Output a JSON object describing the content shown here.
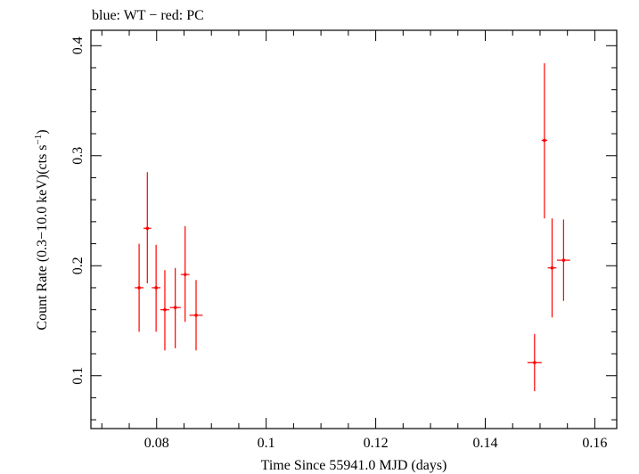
{
  "chart_data": {
    "type": "scatter",
    "title": "blue: WT − red: PC",
    "xlabel": "Time Since 55941.0 MJD (days)",
    "ylabel_main": "Count Rate (0.3−10.0 keV)(cts s",
    "ylabel_sup": "−1",
    "ylabel_close": ")",
    "xlim": [
      0.068,
      0.164
    ],
    "ylim": [
      0.052,
      0.414
    ],
    "xticks": [
      0.08,
      0.1,
      0.12,
      0.14,
      0.16
    ],
    "xtick_labels": [
      "0.08",
      "0.1",
      "0.12",
      "0.14",
      "0.16"
    ],
    "yticks": [
      0.1,
      0.2,
      0.3,
      0.4
    ],
    "ytick_labels": [
      "0.1",
      "0.2",
      "0.3",
      "0.4"
    ],
    "series": [
      {
        "name": "PC",
        "color": "#ff0000",
        "points": [
          {
            "x": 0.0768,
            "xerr": 0.0008,
            "y": 0.18,
            "ylo": 0.14,
            "yhi": 0.22
          },
          {
            "x": 0.0783,
            "xerr": 0.0007,
            "y": 0.234,
            "ylo": 0.184,
            "yhi": 0.285
          },
          {
            "x": 0.0799,
            "xerr": 0.0008,
            "y": 0.18,
            "ylo": 0.14,
            "yhi": 0.219
          },
          {
            "x": 0.0815,
            "xerr": 0.0008,
            "y": 0.16,
            "ylo": 0.123,
            "yhi": 0.196
          },
          {
            "x": 0.0834,
            "xerr": 0.001,
            "y": 0.162,
            "ylo": 0.125,
            "yhi": 0.198
          },
          {
            "x": 0.0852,
            "xerr": 0.0008,
            "y": 0.192,
            "ylo": 0.149,
            "yhi": 0.236
          },
          {
            "x": 0.0872,
            "xerr": 0.0012,
            "y": 0.155,
            "ylo": 0.123,
            "yhi": 0.187
          },
          {
            "x": 0.149,
            "xerr": 0.0013,
            "y": 0.112,
            "ylo": 0.086,
            "yhi": 0.138
          },
          {
            "x": 0.1508,
            "xerr": 0.0005,
            "y": 0.314,
            "ylo": 0.243,
            "yhi": 0.384
          },
          {
            "x": 0.1522,
            "xerr": 0.0008,
            "y": 0.198,
            "ylo": 0.153,
            "yhi": 0.243
          },
          {
            "x": 0.1543,
            "xerr": 0.0012,
            "y": 0.205,
            "ylo": 0.168,
            "yhi": 0.242
          }
        ]
      }
    ]
  }
}
